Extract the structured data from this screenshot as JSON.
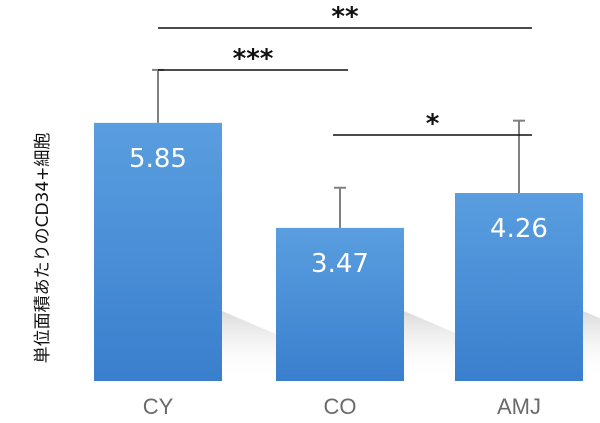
{
  "chart_data": {
    "type": "bar",
    "title": "",
    "xlabel": "",
    "ylabel": "単位面積あたりのCD34+細胞",
    "categories": [
      "CY",
      "CO",
      "AMJ"
    ],
    "values": [
      5.85,
      3.47,
      4.26
    ],
    "error_upper": [
      7.05,
      4.38,
      5.9
    ],
    "ylim": [
      0,
      8.0
    ],
    "value_labels": [
      "5.85",
      "3.47",
      "4.26"
    ],
    "significance": [
      {
        "from": "CY",
        "to": "AMJ",
        "label": "**"
      },
      {
        "from": "CY",
        "to": "CO",
        "label": "***"
      },
      {
        "from": "CO",
        "to": "AMJ",
        "label": "*"
      }
    ],
    "bar_color": "#4a90d9",
    "bar_color_dark": "#3579c8",
    "error_color": "#808080",
    "grid": false
  }
}
